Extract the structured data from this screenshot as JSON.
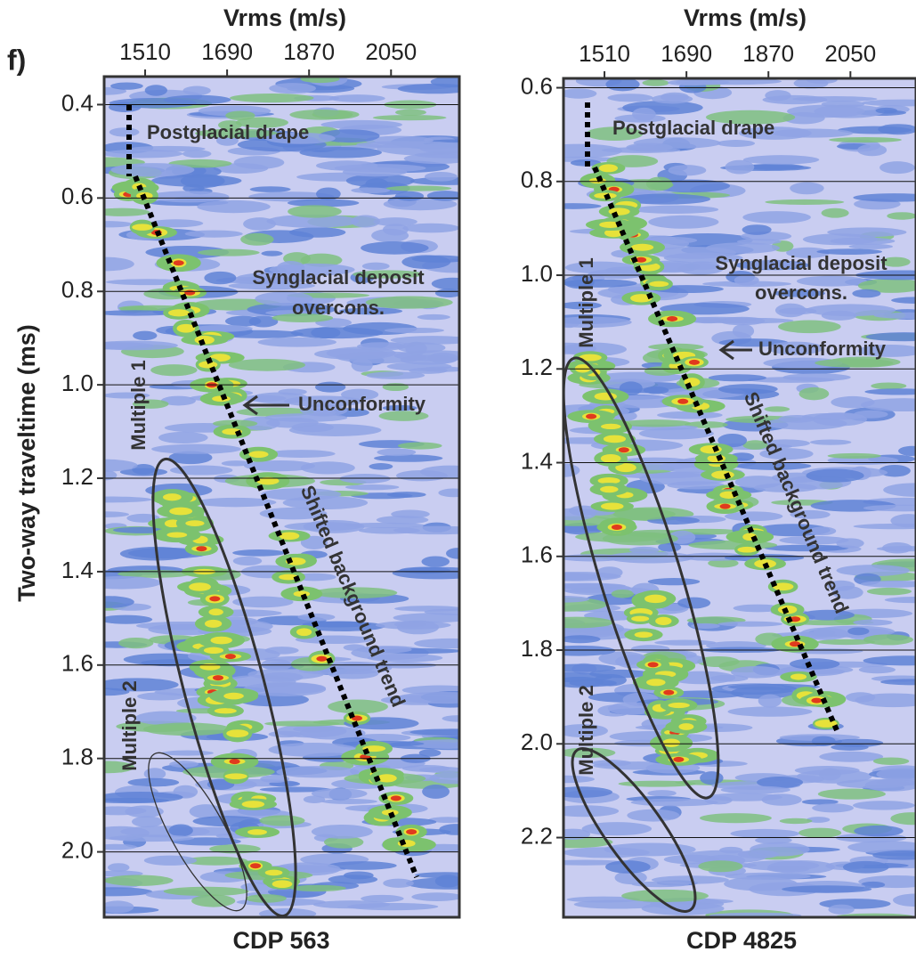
{
  "figure_label": "f)",
  "chart_data": [
    {
      "type": "semblance",
      "x_label": "Vrms (m/s)",
      "y_label": "Two-way traveltime (ms)",
      "title": "CDP 563",
      "xlim": [
        1420,
        2200
      ],
      "xticks": [
        1510,
        1690,
        1870,
        2050
      ],
      "ylim": [
        0.34,
        2.14
      ],
      "yticks": [
        0.4,
        0.6,
        0.8,
        {
          "value": 1,
          "label": "1.0"
        },
        1.2,
        1.4,
        1.6,
        1.8,
        {
          "value": 2,
          "label": "2.0"
        }
      ],
      "grid": true,
      "annotations": [
        "Postglacial drape",
        "Synglacial deposit",
        "overcons.",
        "Unconformity",
        "Multiple 1",
        "Multiple 2",
        "Shifted background trend"
      ]
    },
    {
      "type": "semblance",
      "x_label": "Vrms (m/s)",
      "title": "CDP 4825",
      "xlim": [
        1420,
        2194
      ],
      "xticks": [
        1510,
        1690,
        1870,
        2050
      ],
      "ylim": [
        0.58,
        2.37
      ],
      "yticks": [
        0.6,
        0.8,
        {
          "value": 1,
          "label": "1.0"
        },
        1.2,
        1.4,
        1.6,
        1.8,
        {
          "value": 2,
          "label": "2.0"
        },
        2.2
      ],
      "grid": true,
      "annotations": [
        "Postglacial drape",
        "Synglacial deposit",
        "overcons.",
        "Unconformity",
        "Multiple 1",
        "Multiple 2",
        "Shifted background trend"
      ]
    }
  ]
}
